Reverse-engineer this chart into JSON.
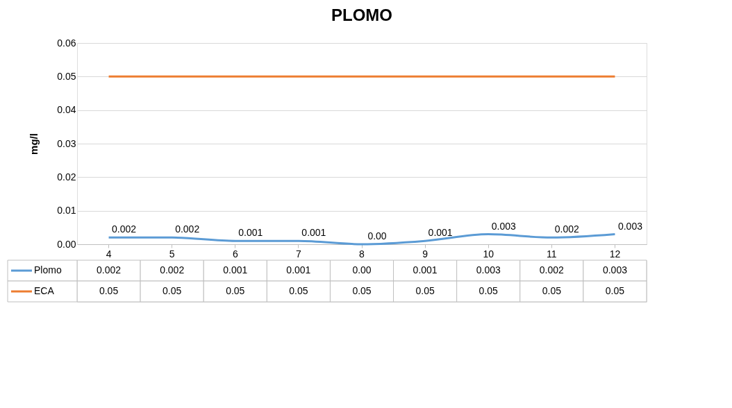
{
  "chart_data": {
    "type": "line",
    "title": "PLOMO",
    "ylabel": "mg/l",
    "categories": [
      "4",
      "5",
      "6",
      "7",
      "8",
      "9",
      "10",
      "11",
      "12"
    ],
    "series": [
      {
        "name": "Plomo",
        "color": "#5b9bd5",
        "values": [
          0.002,
          0.002,
          0.001,
          0.001,
          0.0,
          0.001,
          0.003,
          0.002,
          0.003
        ],
        "value_labels": [
          "0.002",
          "0.002",
          "0.001",
          "0.001",
          "0.00",
          "0.001",
          "0.003",
          "0.002",
          "0.003"
        ]
      },
      {
        "name": "ECA",
        "color": "#ed7d31",
        "values": [
          0.05,
          0.05,
          0.05,
          0.05,
          0.05,
          0.05,
          0.05,
          0.05,
          0.05
        ],
        "value_labels": [
          "0.05",
          "0.05",
          "0.05",
          "0.05",
          "0.05",
          "0.05",
          "0.05",
          "0.05",
          "0.05"
        ]
      }
    ],
    "ylim": [
      0,
      0.06
    ],
    "yticks": [
      {
        "value": 0,
        "label": "0.00"
      },
      {
        "value": 0.01,
        "label": "0.01"
      },
      {
        "value": 0.02,
        "label": "0.02"
      },
      {
        "value": 0.03,
        "label": "0.03"
      },
      {
        "value": 0.04,
        "label": "0.04"
      },
      {
        "value": 0.05,
        "label": "0.05"
      },
      {
        "value": 0.06,
        "label": "0.06"
      }
    ],
    "grid": "y",
    "legend": "bottom",
    "line_style": "solid",
    "marker": "none"
  }
}
